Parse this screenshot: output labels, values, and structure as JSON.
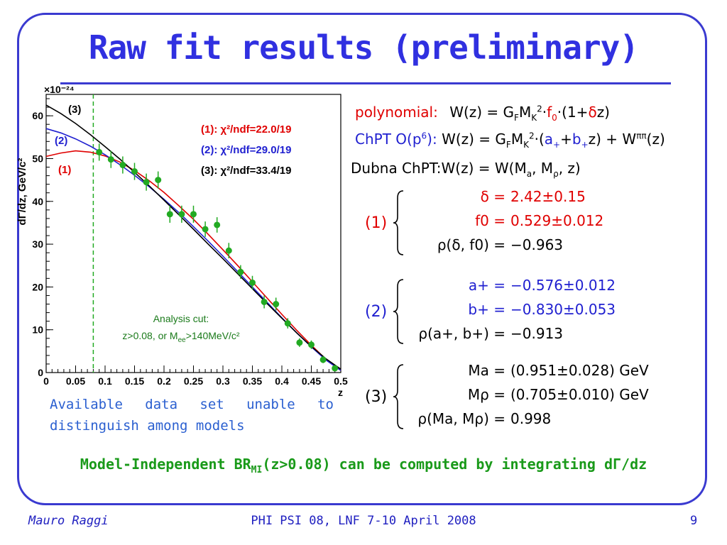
{
  "slide": {
    "title": "Raw fit results (preliminary)",
    "note_line1": "Available data set unable to",
    "note_line2": "distinguish among models",
    "mi_statement": "Model-Independent BR",
    "mi_sub": "MI",
    "mi_rest": "(z>0.08) can be computed by integrating dΓ/dz",
    "footer_left": "Mauro Raggi",
    "footer_center": "PHI PSI 08, LNF 7-10 April 2008",
    "footer_right": "9"
  },
  "models": {
    "polynomial_label": "polynomial:",
    "chpt_label": "ChPT O(p",
    "chpt_label_sup": "6",
    "chpt_label_end": "):",
    "dubna_label": "Dubna ChPT:"
  },
  "params": {
    "g1": {
      "label": "(1)",
      "rows": [
        {
          "name": "δ =",
          "value": "2.42±0.15",
          "color": "#e00000"
        },
        {
          "name": "f0 =",
          "value": "0.529±0.012",
          "color": "#e00000"
        },
        {
          "name": "ρ(δ, f0) =",
          "value": "−0.963",
          "color": "#000000"
        }
      ],
      "color": "#e00000"
    },
    "g2": {
      "label": "(2)",
      "rows": [
        {
          "name": "a+ =",
          "value": "−0.576±0.012",
          "color": "#2020d0"
        },
        {
          "name": "b+ =",
          "value": "−0.830±0.053",
          "color": "#2020d0"
        },
        {
          "name": "ρ(a+, b+) =",
          "value": "−0.913",
          "color": "#000000"
        }
      ],
      "color": "#2020d0"
    },
    "g3": {
      "label": "(3)",
      "rows": [
        {
          "name": "Ma =",
          "value": "(0.951±0.028) GeV",
          "color": "#000000"
        },
        {
          "name": "Mρ =",
          "value": "(0.705±0.010) GeV",
          "color": "#000000"
        },
        {
          "name": "ρ(Ma, Mρ) =",
          "value": "0.998",
          "color": "#000000"
        }
      ],
      "color": "#000000"
    }
  },
  "chart_data": {
    "type": "scatter",
    "ylabel": "dΓ/dz, GeV/c²",
    "xlabel": "z",
    "y_multiplier": "×10⁻²⁴",
    "xlim": [
      0,
      0.5
    ],
    "ylim": [
      0,
      65
    ],
    "xticks": [
      "0",
      "0.05",
      "0.1",
      "0.15",
      "0.2",
      "0.25",
      "0.3",
      "0.35",
      "0.4",
      "0.45",
      "0.5"
    ],
    "yticks": [
      "0",
      "10",
      "20",
      "30",
      "40",
      "50",
      "60"
    ],
    "grid": false,
    "cut_line_x": 0.08,
    "cut_text_line1": "Analysis cut:",
    "cut_text_line2": "z>0.08, or M",
    "cut_text_sub": "ee",
    "cut_text_end": ">140MeV/c²",
    "legend": [
      {
        "label": "(1): χ²/ndf=22.0/19",
        "color": "#e00000"
      },
      {
        "label": "(2): χ²/ndf=29.0/19",
        "color": "#2020d0"
      },
      {
        "label": "(3): χ²/ndf=33.4/19",
        "color": "#000000"
      }
    ],
    "curve_labels": [
      {
        "label": "(3)",
        "color": "#000000"
      },
      {
        "label": "(2)",
        "color": "#2020d0"
      },
      {
        "label": "(1)",
        "color": "#e00000"
      }
    ],
    "points": [
      {
        "x": 0.09,
        "y": 51.5,
        "err": 2.0
      },
      {
        "x": 0.11,
        "y": 49.8,
        "err": 2.0
      },
      {
        "x": 0.13,
        "y": 48.5,
        "err": 2.0
      },
      {
        "x": 0.15,
        "y": 47.0,
        "err": 2.0
      },
      {
        "x": 0.17,
        "y": 44.5,
        "err": 2.0
      },
      {
        "x": 0.19,
        "y": 45.0,
        "err": 2.0
      },
      {
        "x": 0.21,
        "y": 37.0,
        "err": 2.0
      },
      {
        "x": 0.23,
        "y": 37.0,
        "err": 2.0
      },
      {
        "x": 0.25,
        "y": 37.0,
        "err": 2.0
      },
      {
        "x": 0.27,
        "y": 33.5,
        "err": 1.8
      },
      {
        "x": 0.29,
        "y": 34.5,
        "err": 1.8
      },
      {
        "x": 0.31,
        "y": 28.5,
        "err": 1.8
      },
      {
        "x": 0.33,
        "y": 23.5,
        "err": 1.6
      },
      {
        "x": 0.35,
        "y": 21.0,
        "err": 1.6
      },
      {
        "x": 0.37,
        "y": 16.5,
        "err": 1.5
      },
      {
        "x": 0.39,
        "y": 16.0,
        "err": 1.5
      },
      {
        "x": 0.41,
        "y": 11.5,
        "err": 1.2
      },
      {
        "x": 0.43,
        "y": 7.0,
        "err": 1.0
      },
      {
        "x": 0.45,
        "y": 6.5,
        "err": 1.0
      },
      {
        "x": 0.47,
        "y": 3.0,
        "err": 0.8
      },
      {
        "x": 0.49,
        "y": 1.0,
        "err": 0.5
      }
    ],
    "series": [
      {
        "name": "(1)",
        "color": "#e00000",
        "x": [
          0.0,
          0.025,
          0.05,
          0.075,
          0.1,
          0.125,
          0.15,
          0.175,
          0.2,
          0.225,
          0.25,
          0.275,
          0.3,
          0.325,
          0.35,
          0.375,
          0.4,
          0.425,
          0.45,
          0.475,
          0.5
        ],
        "y": [
          50.5,
          51.3,
          51.8,
          51.5,
          50.6,
          49.2,
          47.2,
          44.8,
          42.1,
          39.0,
          35.8,
          32.3,
          28.7,
          25.0,
          21.2,
          17.4,
          13.6,
          9.9,
          6.4,
          3.1,
          0.5
        ]
      },
      {
        "name": "(2)",
        "color": "#2020d0",
        "x": [
          0.0,
          0.025,
          0.05,
          0.075,
          0.1,
          0.125,
          0.15,
          0.175,
          0.2,
          0.225,
          0.25,
          0.275,
          0.3,
          0.325,
          0.35,
          0.375,
          0.4,
          0.425,
          0.45,
          0.475,
          0.5
        ],
        "y": [
          57.0,
          56.0,
          54.6,
          52.9,
          50.9,
          48.6,
          46.1,
          43.4,
          40.5,
          37.4,
          34.1,
          30.7,
          27.2,
          23.6,
          20.0,
          16.4,
          12.8,
          9.3,
          6.0,
          2.9,
          0.5
        ]
      },
      {
        "name": "(3)",
        "color": "#000000",
        "x": [
          0.0,
          0.025,
          0.05,
          0.075,
          0.1,
          0.125,
          0.15,
          0.175,
          0.2,
          0.225,
          0.25,
          0.275,
          0.3,
          0.325,
          0.35,
          0.375,
          0.4,
          0.425,
          0.45,
          0.475,
          0.5
        ],
        "y": [
          62.5,
          60.5,
          58.2,
          55.6,
          52.8,
          49.9,
          46.8,
          43.6,
          40.3,
          36.9,
          33.5,
          30.0,
          26.6,
          23.1,
          19.6,
          16.1,
          12.7,
          9.3,
          6.1,
          3.2,
          0.8
        ]
      }
    ]
  }
}
